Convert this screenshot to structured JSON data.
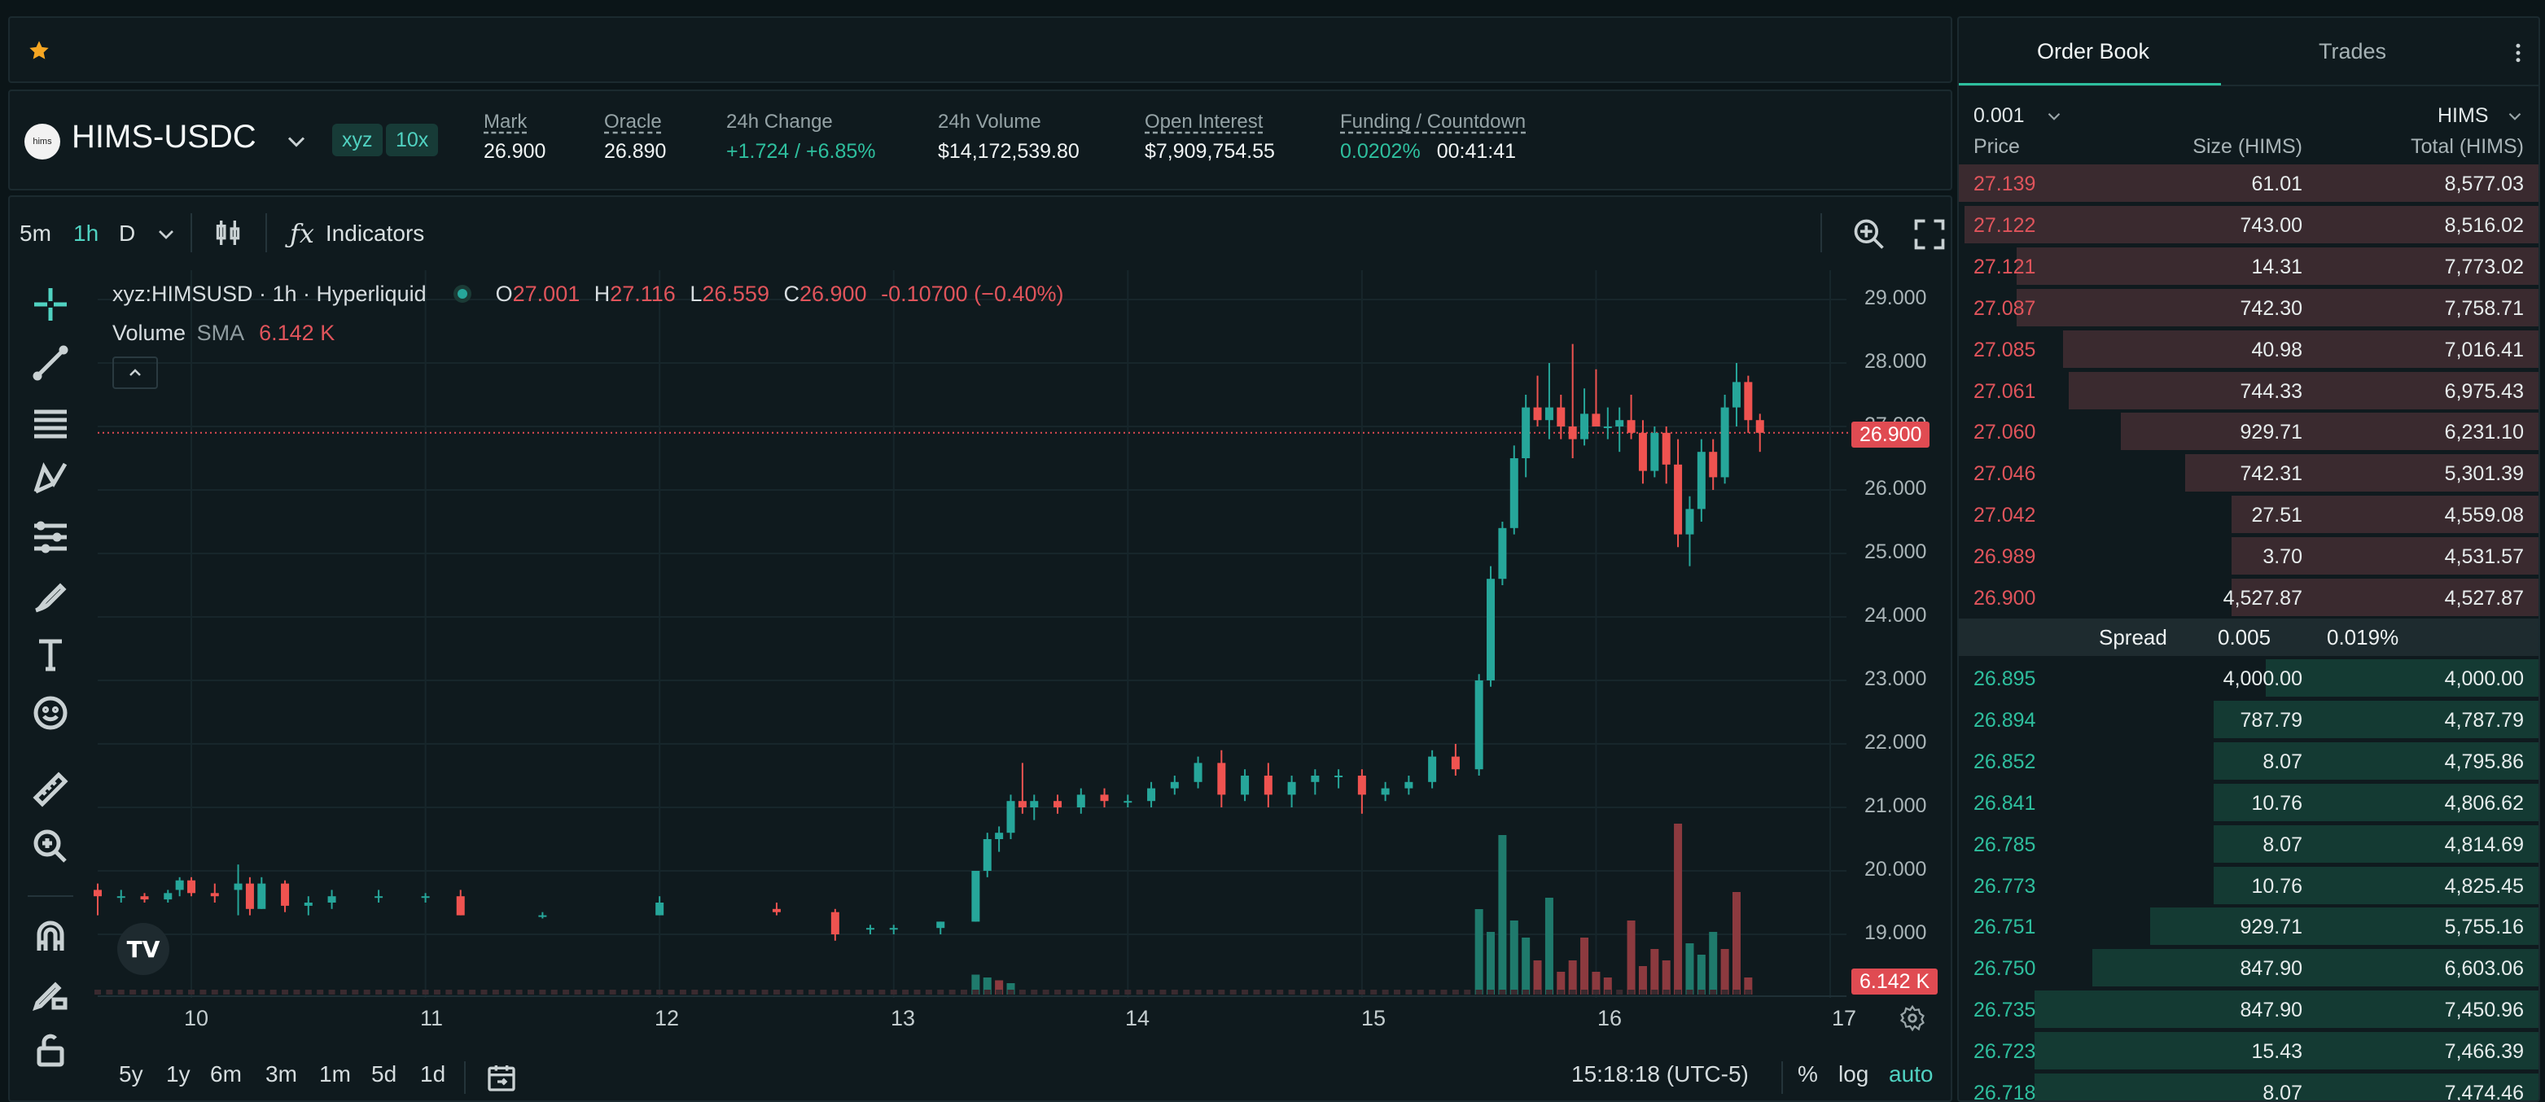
{
  "ticker": {
    "logo_text": "hims",
    "pair": "HIMS-USDC",
    "tags": [
      "xyz",
      "10x"
    ],
    "stats": [
      {
        "label": "Mark",
        "value": "26.900",
        "underline": true,
        "color": "white"
      },
      {
        "label": "Oracle",
        "value": "26.890",
        "underline": true,
        "color": "white"
      },
      {
        "label": "24h Change",
        "value": "+1.724 / +6.85%",
        "underline": false,
        "color": "green"
      },
      {
        "label": "24h Volume",
        "value": "$14,172,539.80",
        "underline": false,
        "color": "white"
      },
      {
        "label": "Open Interest",
        "value": "$7,909,754.55",
        "underline": true,
        "color": "white"
      },
      {
        "label": "Funding / Countdown",
        "value": "0.0202%",
        "value2": "00:41:41",
        "underline": true,
        "color": "green"
      }
    ]
  },
  "toolbar": {
    "intervals": [
      "5m",
      "1h",
      "D"
    ],
    "active_interval": "1h",
    "indicators_label": "Indicators"
  },
  "legend": {
    "symbol": "xyz:HIMSUSD · 1h · Hyperliquid",
    "o_label": "O",
    "o": "27.001",
    "h_label": "H",
    "h": "27.116",
    "l_label": "L",
    "l": "26.559",
    "c_label": "C",
    "c": "26.900",
    "change": "-0.10700 (−0.40%)",
    "volume_label": "Volume",
    "sma_label": "SMA",
    "sma_value": "6.142 K"
  },
  "chart_data": {
    "type": "candlestick",
    "y_ticks": [
      "29.000",
      "28.000",
      "27.000",
      "26.000",
      "25.000",
      "24.000",
      "23.000",
      "22.000",
      "21.000",
      "20.000",
      "19.000"
    ],
    "x_ticks": [
      "10",
      "11",
      "12",
      "13",
      "14",
      "15",
      "16",
      "17"
    ],
    "last_price": "26.900",
    "last_volume": "6.142 K",
    "ylim": [
      18.0,
      29.0
    ],
    "xlim": [
      9.6,
      17.0
    ],
    "candles": [
      [
        9.6,
        19.7,
        19.8,
        19.3,
        19.6
      ],
      [
        9.7,
        19.6,
        19.7,
        19.5,
        19.6
      ],
      [
        9.8,
        19.6,
        19.65,
        19.5,
        19.55
      ],
      [
        9.9,
        19.55,
        19.7,
        19.5,
        19.65
      ],
      [
        9.95,
        19.7,
        19.9,
        19.6,
        19.85
      ],
      [
        10.0,
        19.85,
        19.9,
        19.6,
        19.65
      ],
      [
        10.1,
        19.65,
        19.8,
        19.5,
        19.6
      ],
      [
        10.2,
        19.7,
        20.1,
        19.3,
        19.8
      ],
      [
        10.25,
        19.8,
        19.9,
        19.3,
        19.4
      ],
      [
        10.3,
        19.4,
        19.9,
        19.4,
        19.8
      ],
      [
        10.4,
        19.8,
        19.85,
        19.35,
        19.45
      ],
      [
        10.5,
        19.45,
        19.6,
        19.3,
        19.5
      ],
      [
        10.6,
        19.5,
        19.7,
        19.4,
        19.6
      ],
      [
        10.8,
        19.6,
        19.7,
        19.5,
        19.6
      ],
      [
        11.0,
        19.6,
        19.65,
        19.5,
        19.6
      ],
      [
        11.15,
        19.6,
        19.7,
        19.3,
        19.3
      ],
      [
        11.5,
        19.3,
        19.35,
        19.25,
        19.3
      ],
      [
        12.0,
        19.3,
        19.6,
        19.3,
        19.5
      ],
      [
        12.5,
        19.4,
        19.5,
        19.3,
        19.35
      ],
      [
        12.75,
        19.35,
        19.4,
        18.9,
        19.0
      ],
      [
        12.9,
        19.1,
        19.15,
        19.0,
        19.1
      ],
      [
        13.0,
        19.1,
        19.15,
        19.0,
        19.1
      ],
      [
        13.2,
        19.1,
        19.2,
        19.0,
        19.2
      ],
      [
        13.35,
        19.2,
        20.0,
        19.2,
        20.0
      ],
      [
        13.4,
        20.0,
        20.6,
        19.9,
        20.5
      ],
      [
        13.45,
        20.5,
        20.7,
        20.3,
        20.6
      ],
      [
        13.5,
        20.6,
        21.2,
        20.5,
        21.1
      ],
      [
        13.55,
        21.1,
        21.7,
        20.9,
        21.0
      ],
      [
        13.6,
        21.0,
        21.2,
        20.8,
        21.1
      ],
      [
        13.7,
        21.1,
        21.2,
        20.9,
        21.0
      ],
      [
        13.8,
        21.0,
        21.3,
        20.9,
        21.2
      ],
      [
        13.9,
        21.2,
        21.3,
        21.0,
        21.1
      ],
      [
        14.0,
        21.1,
        21.2,
        21.0,
        21.1
      ],
      [
        14.1,
        21.1,
        21.4,
        21.0,
        21.3
      ],
      [
        14.2,
        21.3,
        21.5,
        21.2,
        21.4
      ],
      [
        14.3,
        21.4,
        21.8,
        21.3,
        21.7
      ],
      [
        14.4,
        21.7,
        21.9,
        21.0,
        21.2
      ],
      [
        14.5,
        21.2,
        21.6,
        21.1,
        21.5
      ],
      [
        14.6,
        21.5,
        21.7,
        21.0,
        21.2
      ],
      [
        14.7,
        21.2,
        21.5,
        21.0,
        21.4
      ],
      [
        14.8,
        21.4,
        21.6,
        21.2,
        21.5
      ],
      [
        14.9,
        21.5,
        21.6,
        21.3,
        21.5
      ],
      [
        15.0,
        21.5,
        21.6,
        20.9,
        21.2
      ],
      [
        15.1,
        21.2,
        21.4,
        21.1,
        21.3
      ],
      [
        15.2,
        21.3,
        21.5,
        21.2,
        21.4
      ],
      [
        15.3,
        21.4,
        21.9,
        21.3,
        21.8
      ],
      [
        15.4,
        21.8,
        22.0,
        21.5,
        21.6
      ],
      [
        15.5,
        21.6,
        23.1,
        21.5,
        23.0
      ],
      [
        15.55,
        23.0,
        24.8,
        22.9,
        24.6
      ],
      [
        15.6,
        24.6,
        25.5,
        24.5,
        25.4
      ],
      [
        15.65,
        25.4,
        26.7,
        25.3,
        26.5
      ],
      [
        15.7,
        26.5,
        27.5,
        26.2,
        27.3
      ],
      [
        15.75,
        27.3,
        27.8,
        27.0,
        27.1
      ],
      [
        15.8,
        27.1,
        28.0,
        26.8,
        27.3
      ],
      [
        15.85,
        27.3,
        27.5,
        26.8,
        27.0
      ],
      [
        15.9,
        27.0,
        28.3,
        26.5,
        26.8
      ],
      [
        15.95,
        26.8,
        27.6,
        26.7,
        27.2
      ],
      [
        16.0,
        27.2,
        27.9,
        27.0,
        27.0
      ],
      [
        16.05,
        27.0,
        27.3,
        26.8,
        27.0
      ],
      [
        16.1,
        27.0,
        27.3,
        26.6,
        27.1
      ],
      [
        16.15,
        27.1,
        27.5,
        26.8,
        26.9
      ],
      [
        16.2,
        26.9,
        27.1,
        26.1,
        26.3
      ],
      [
        16.25,
        26.3,
        27.0,
        26.2,
        26.9
      ],
      [
        16.3,
        26.9,
        27.0,
        26.1,
        26.4
      ],
      [
        16.35,
        26.4,
        26.8,
        25.1,
        25.3
      ],
      [
        16.4,
        25.3,
        25.9,
        24.8,
        25.7
      ],
      [
        16.45,
        25.7,
        26.8,
        25.5,
        26.6
      ],
      [
        16.5,
        26.6,
        26.8,
        26.0,
        26.2
      ],
      [
        16.55,
        26.2,
        27.5,
        26.1,
        27.3
      ],
      [
        16.6,
        27.3,
        28.0,
        27.0,
        27.7
      ],
      [
        16.65,
        27.7,
        27.8,
        26.9,
        27.1
      ],
      [
        16.7,
        27.1,
        27.2,
        26.6,
        26.9
      ]
    ],
    "volumes": [
      [
        13.35,
        0.35,
        "g"
      ],
      [
        13.4,
        0.3,
        "g"
      ],
      [
        13.45,
        0.25,
        "r"
      ],
      [
        13.5,
        0.2,
        "g"
      ],
      [
        15.5,
        1.5,
        "g"
      ],
      [
        15.55,
        1.1,
        "g"
      ],
      [
        15.6,
        2.8,
        "g"
      ],
      [
        15.65,
        1.3,
        "g"
      ],
      [
        15.7,
        1.0,
        "g"
      ],
      [
        15.75,
        0.6,
        "r"
      ],
      [
        15.8,
        1.7,
        "g"
      ],
      [
        15.85,
        0.4,
        "r"
      ],
      [
        15.9,
        0.6,
        "r"
      ],
      [
        15.95,
        1.0,
        "r"
      ],
      [
        16.0,
        0.4,
        "r"
      ],
      [
        16.05,
        0.3,
        "r"
      ],
      [
        16.15,
        1.3,
        "r"
      ],
      [
        16.2,
        0.5,
        "r"
      ],
      [
        16.25,
        0.8,
        "r"
      ],
      [
        16.3,
        0.6,
        "r"
      ],
      [
        16.35,
        3.0,
        "r"
      ],
      [
        16.4,
        0.9,
        "g"
      ],
      [
        16.45,
        0.7,
        "g"
      ],
      [
        16.5,
        1.1,
        "g"
      ],
      [
        16.55,
        0.8,
        "r"
      ],
      [
        16.6,
        1.8,
        "r"
      ],
      [
        16.65,
        0.3,
        "r"
      ]
    ]
  },
  "bottom": {
    "ranges": [
      "5y",
      "1y",
      "6m",
      "3m",
      "1m",
      "5d",
      "1d"
    ],
    "time": "15:18:18 (UTC-5)",
    "percent": "%",
    "log": "log",
    "auto": "auto"
  },
  "orderbook": {
    "tabs": [
      "Order Book",
      "Trades"
    ],
    "active_tab": "Order Book",
    "precision": "0.001",
    "unit": "HIMS",
    "columns": [
      "Price",
      "Size (HIMS)",
      "Total (HIMS)"
    ],
    "asks": [
      {
        "price": "27.139",
        "size": "61.01",
        "total": "8,577.03",
        "depth": 1.0
      },
      {
        "price": "27.122",
        "size": "743.00",
        "total": "8,516.02",
        "depth": 0.99
      },
      {
        "price": "27.121",
        "size": "14.31",
        "total": "7,773.02",
        "depth": 0.9
      },
      {
        "price": "27.087",
        "size": "742.30",
        "total": "7,758.71",
        "depth": 0.9
      },
      {
        "price": "27.085",
        "size": "40.98",
        "total": "7,016.41",
        "depth": 0.82
      },
      {
        "price": "27.061",
        "size": "744.33",
        "total": "6,975.43",
        "depth": 0.81
      },
      {
        "price": "27.060",
        "size": "929.71",
        "total": "6,231.10",
        "depth": 0.72
      },
      {
        "price": "27.046",
        "size": "742.31",
        "total": "5,301.39",
        "depth": 0.61
      },
      {
        "price": "27.042",
        "size": "27.51",
        "total": "4,559.08",
        "depth": 0.53
      },
      {
        "price": "26.989",
        "size": "3.70",
        "total": "4,531.57",
        "depth": 0.53
      },
      {
        "price": "26.900",
        "size": "4,527.87",
        "total": "4,527.87",
        "depth": 0.53
      }
    ],
    "spread_label": "Spread",
    "spread_value": "0.005",
    "spread_pct": "0.019%",
    "bids": [
      {
        "price": "26.895",
        "size": "4,000.00",
        "total": "4,000.00",
        "depth": 0.47
      },
      {
        "price": "26.894",
        "size": "787.79",
        "total": "4,787.79",
        "depth": 0.56
      },
      {
        "price": "26.852",
        "size": "8.07",
        "total": "4,795.86",
        "depth": 0.56
      },
      {
        "price": "26.841",
        "size": "10.76",
        "total": "4,806.62",
        "depth": 0.56
      },
      {
        "price": "26.785",
        "size": "8.07",
        "total": "4,814.69",
        "depth": 0.56
      },
      {
        "price": "26.773",
        "size": "10.76",
        "total": "4,825.45",
        "depth": 0.56
      },
      {
        "price": "26.751",
        "size": "929.71",
        "total": "5,755.16",
        "depth": 0.67
      },
      {
        "price": "26.750",
        "size": "847.90",
        "total": "6,603.06",
        "depth": 0.77
      },
      {
        "price": "26.735",
        "size": "847.90",
        "total": "7,450.96",
        "depth": 0.87
      },
      {
        "price": "26.723",
        "size": "15.43",
        "total": "7,466.39",
        "depth": 0.87
      },
      {
        "price": "26.718",
        "size": "8.07",
        "total": "7,474.46",
        "depth": 0.87
      }
    ]
  },
  "colors": {
    "up": "#26a69a",
    "down": "#ef5350",
    "accent": "#50d2c1"
  }
}
